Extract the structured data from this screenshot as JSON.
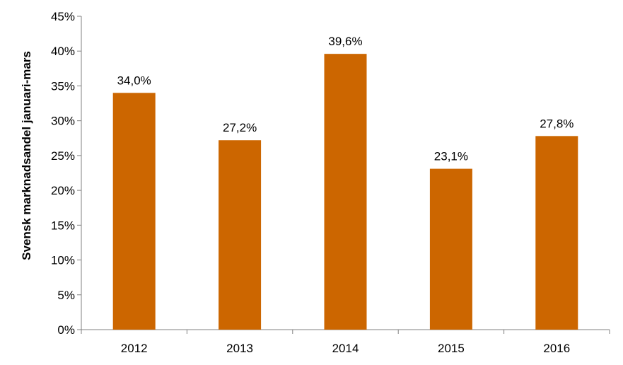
{
  "chart_data": {
    "type": "bar",
    "categories": [
      "2012",
      "2013",
      "2014",
      "2015",
      "2016"
    ],
    "values": [
      34.0,
      27.2,
      39.6,
      23.1,
      27.8
    ],
    "data_labels": [
      "34,0%",
      "27,2%",
      "39,6%",
      "23,1%",
      "27,8%"
    ],
    "ylabel": "Svensk marknadsandel januari-mars",
    "xlabel": "",
    "ylim": [
      0,
      45
    ],
    "yticks": [
      0,
      5,
      10,
      15,
      20,
      25,
      30,
      35,
      40,
      45
    ],
    "ytick_labels": [
      "0%",
      "5%",
      "10%",
      "15%",
      "20%",
      "25%",
      "30%",
      "35%",
      "40%",
      "45%"
    ],
    "bar_color": "#CC6600",
    "grid": false,
    "legend": "none"
  }
}
